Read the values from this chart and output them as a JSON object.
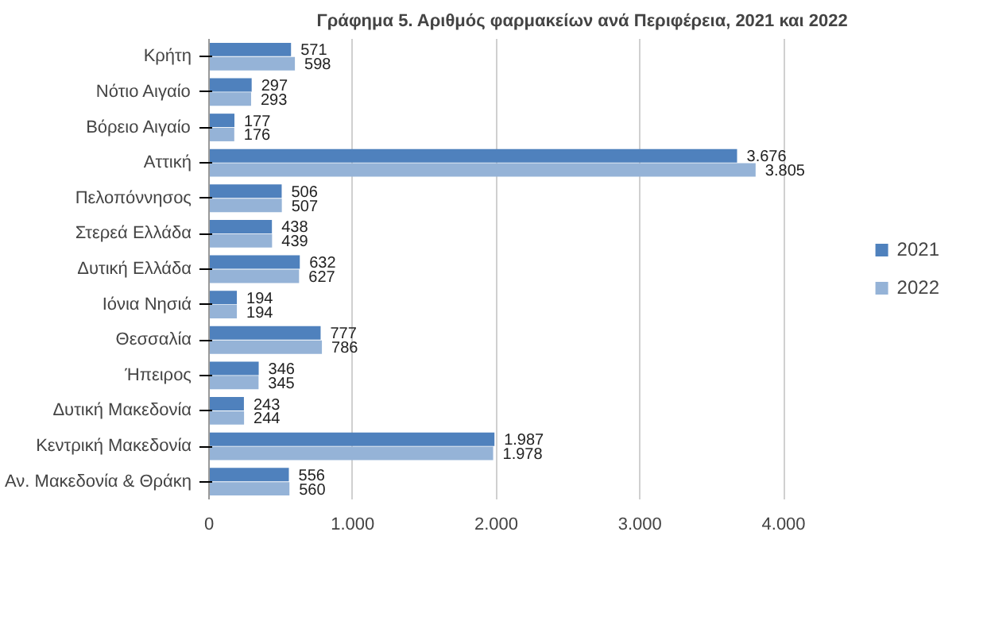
{
  "chart_data": {
    "type": "bar",
    "orientation": "horizontal",
    "title": "Γράφημα 5. Αριθμός φαρμακείων ανά Περιφέρεια, 2021 και 2022",
    "categories": [
      "Κρήτη",
      "Νότιο Αιγαίο",
      "Βόρειο Αιγαίο",
      "Αττική",
      "Πελοπόννησος",
      "Στερεά Ελλάδα",
      "Δυτική Ελλάδα",
      "Ιόνια Νησιά",
      "Θεσσαλία",
      "Ήπειρος",
      "Δυτική Μακεδονία",
      "Κεντρική Μακεδονία",
      "Αν. Μακεδονία & Θράκη"
    ],
    "series": [
      {
        "name": "2021",
        "color": "#4f81bd",
        "values": [
          571,
          297,
          177,
          3676,
          506,
          438,
          632,
          194,
          777,
          346,
          243,
          1987,
          556
        ],
        "value_labels": [
          "571",
          "297",
          "177",
          "3.676",
          "506",
          "438",
          "632",
          "194",
          "777",
          "346",
          "243",
          "1.987",
          "556"
        ]
      },
      {
        "name": "2022",
        "color": "#95b3d7",
        "values": [
          598,
          293,
          176,
          3805,
          507,
          439,
          627,
          194,
          786,
          345,
          244,
          1978,
          560
        ],
        "value_labels": [
          "598",
          "293",
          "176",
          "3.805",
          "507",
          "439",
          "627",
          "194",
          "786",
          "345",
          "244",
          "1.978",
          "560"
        ]
      }
    ],
    "xlim": [
      0,
      4000
    ],
    "xticks": [
      0,
      {
        "value": 1000,
        "label": "1.000"
      },
      {
        "value": 2000,
        "label": "2.000"
      },
      {
        "value": 3000,
        "label": "3.000"
      },
      {
        "value": 4000,
        "label": "4.000"
      }
    ],
    "grid": "x",
    "legend": "right"
  }
}
